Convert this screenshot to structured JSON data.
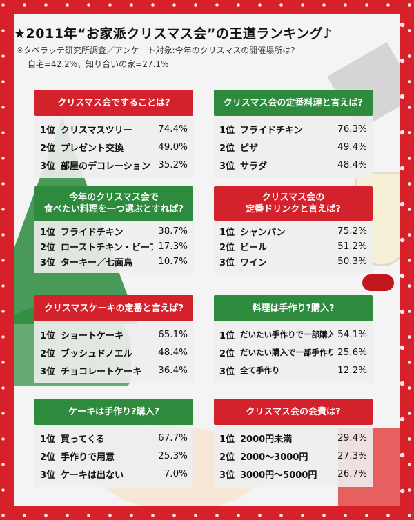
{
  "header": {
    "title": "★2011年“お家派クリスマス会”の王道ランキング♪",
    "survey": "※タベラッテ研究所調査／アンケート対象:今年のクリスマスの開催場所は?",
    "stats": "自宅=42.2%、知り合いの家=27.1%"
  },
  "cards": [
    {
      "title": "クリスマス会ですることは?",
      "rows": [
        {
          "rank": "1位",
          "item": "クリスマスツリー",
          "pct": "74.4%"
        },
        {
          "rank": "2位",
          "item": "プレゼント交換",
          "pct": "49.0%"
        },
        {
          "rank": "3位",
          "item": "部屋のデコレーション",
          "pct": "35.2%"
        }
      ]
    },
    {
      "title": "クリスマス会の定番料理と言えば?",
      "rows": [
        {
          "rank": "1位",
          "item": "フライドチキン",
          "pct": "76.3%"
        },
        {
          "rank": "2位",
          "item": "ピザ",
          "pct": "49.4%"
        },
        {
          "rank": "3位",
          "item": "サラダ",
          "pct": "48.4%"
        }
      ]
    },
    {
      "title_line1": "今年のクリスマス会で",
      "title_line2": "食べたい料理を一つ選ぶとすれば?",
      "rows": [
        {
          "rank": "1位",
          "item": "フライドチキン",
          "pct": "38.7%"
        },
        {
          "rank": "2位",
          "item": "ローストチキン・ビーフ",
          "pct": "17.3%"
        },
        {
          "rank": "3位",
          "item": "ターキー／七面鳥",
          "pct": "10.7%"
        }
      ]
    },
    {
      "title_line1": "クリスマス会の",
      "title_line2": "定番ドリンクと言えば?",
      "rows": [
        {
          "rank": "1位",
          "item": "シャンパン",
          "pct": "75.2%"
        },
        {
          "rank": "2位",
          "item": "ビール",
          "pct": "51.2%"
        },
        {
          "rank": "3位",
          "item": "ワイン",
          "pct": "50.3%"
        }
      ]
    },
    {
      "title": "クリスマスケーキの定番と言えば?",
      "rows": [
        {
          "rank": "1位",
          "item": "ショートケーキ",
          "pct": "65.1%"
        },
        {
          "rank": "2位",
          "item": "ブッシュドノエル",
          "pct": "48.4%"
        },
        {
          "rank": "3位",
          "item": "チョコレートケーキ",
          "pct": "36.4%"
        }
      ]
    },
    {
      "title": "料理は手作り?購入?",
      "rows": [
        {
          "rank": "1位",
          "item": "だいたい手作りで一部購入",
          "pct": "54.1%"
        },
        {
          "rank": "2位",
          "item": "だいたい購入で一部手作り",
          "pct": "25.6%"
        },
        {
          "rank": "3位",
          "item": "全て手作り",
          "pct": "12.2%"
        }
      ]
    },
    {
      "title": "ケーキは手作り?購入?",
      "rows": [
        {
          "rank": "1位",
          "item": "買ってくる",
          "pct": "67.7%"
        },
        {
          "rank": "2位",
          "item": "手作りで用意",
          "pct": "25.3%"
        },
        {
          "rank": "3位",
          "item": "ケーキは出ない",
          "pct": "7.0%"
        }
      ]
    },
    {
      "title": "クリスマス会の会費は?",
      "rows": [
        {
          "rank": "1位",
          "item": "2000円未満",
          "pct": "29.4%"
        },
        {
          "rank": "2位",
          "item": "2000〜3000円",
          "pct": "27.3%"
        },
        {
          "rank": "3位",
          "item": "3000円〜5000円",
          "pct": "26.7%"
        }
      ]
    }
  ],
  "colors": {
    "red_header": "#d4222c",
    "green_header": "#2e8a3c",
    "frame": "#d8202a"
  }
}
